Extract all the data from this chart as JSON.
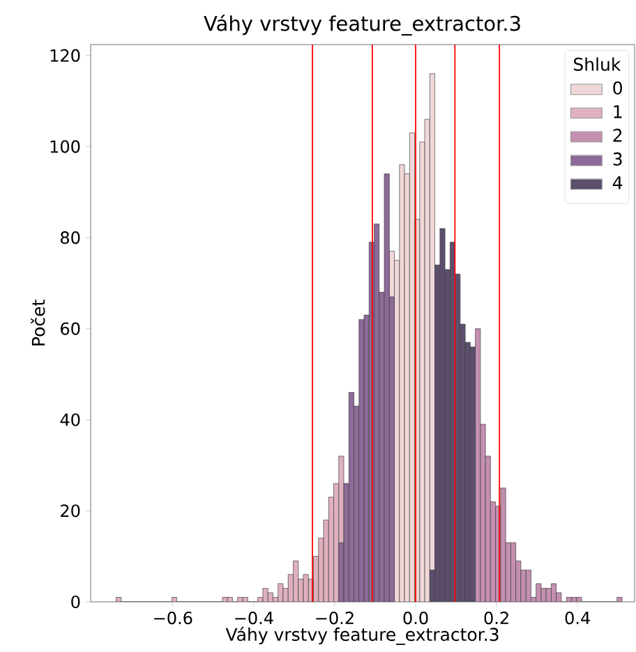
{
  "chart_data": {
    "type": "histogram",
    "title": "Váhy vrstvy feature_extractor.3",
    "xlabel": "Váhy vrstvy feature_extractor.3",
    "ylabel": "Počet",
    "legend_title": "Shluk",
    "legend": "top right",
    "xlim": [
      -0.803,
      0.541
    ],
    "ylim": [
      0,
      122.4
    ],
    "xticks": [
      {
        "value": -0.6,
        "label": "−0.6"
      },
      {
        "value": -0.4,
        "label": "−0.4"
      },
      {
        "value": -0.2,
        "label": "−0.2"
      },
      {
        "value": 0.0,
        "label": "0.0"
      },
      {
        "value": 0.2,
        "label": "0.2"
      },
      {
        "value": 0.4,
        "label": "0.4"
      }
    ],
    "yticks": [
      {
        "value": 0,
        "label": "0"
      },
      {
        "value": 20,
        "label": "20"
      },
      {
        "value": 40,
        "label": "40"
      },
      {
        "value": 60,
        "label": "60"
      },
      {
        "value": 80,
        "label": "80"
      },
      {
        "value": 100,
        "label": "100"
      },
      {
        "value": 120,
        "label": "120"
      }
    ],
    "ref_lines": [
      {
        "axis": "x",
        "value": -0.255,
        "color": "#ff0000"
      },
      {
        "axis": "x",
        "value": -0.107,
        "color": "#ff0000"
      },
      {
        "axis": "x",
        "value": 0.0,
        "color": "#ff0000"
      },
      {
        "axis": "x",
        "value": 0.097,
        "color": "#ff0000"
      },
      {
        "axis": "x",
        "value": 0.207,
        "color": "#ff0000"
      }
    ],
    "bins": [
      -0.74,
      -0.7275,
      -0.715,
      -0.7025,
      -0.69,
      -0.6775,
      -0.665,
      -0.6525,
      -0.64,
      -0.6275,
      -0.615,
      -0.6025,
      -0.59,
      -0.5775,
      -0.565,
      -0.5525,
      -0.54,
      -0.5275,
      -0.515,
      -0.5025,
      -0.49,
      -0.4775,
      -0.465,
      -0.4525,
      -0.44,
      -0.4275,
      -0.415,
      -0.4025,
      -0.39,
      -0.3775,
      -0.365,
      -0.3525,
      -0.34,
      -0.3275,
      -0.315,
      -0.3025,
      -0.29,
      -0.2775,
      -0.265,
      -0.2525,
      -0.24,
      -0.2275,
      -0.215,
      -0.2025,
      -0.19,
      -0.1775,
      -0.165,
      -0.1525,
      -0.14,
      -0.1275,
      -0.115,
      -0.1025,
      -0.09,
      -0.0775,
      -0.065,
      -0.0525,
      -0.04,
      -0.0275,
      -0.015,
      -0.0025,
      0.01,
      0.0225,
      0.035,
      0.0475,
      0.06,
      0.0725,
      0.085,
      0.0975,
      0.11,
      0.1225,
      0.135,
      0.1475,
      0.16,
      0.1725,
      0.185,
      0.1975,
      0.21,
      0.2225,
      0.235,
      0.2475,
      0.26,
      0.2725,
      0.285,
      0.2975,
      0.31,
      0.3225,
      0.335,
      0.3475,
      0.36,
      0.3725,
      0.385,
      0.3975,
      0.41,
      0.4225,
      0.435,
      0.4475,
      0.46,
      0.4725,
      0.485,
      0.4975,
      0.51
    ],
    "series": [
      {
        "name": "0",
        "color": "#f0d8d8",
        "values": [
          null,
          null,
          null,
          null,
          null,
          null,
          null,
          null,
          null,
          null,
          null,
          null,
          null,
          null,
          null,
          null,
          null,
          null,
          null,
          null,
          null,
          null,
          null,
          null,
          null,
          null,
          null,
          null,
          null,
          null,
          null,
          null,
          null,
          null,
          null,
          null,
          null,
          null,
          null,
          null,
          null,
          null,
          null,
          null,
          null,
          null,
          null,
          null,
          null,
          null,
          null,
          null,
          null,
          null,
          77,
          75,
          96,
          94,
          103,
          84,
          101,
          106,
          116,
          null,
          null,
          null,
          null,
          null,
          null,
          null,
          null,
          null,
          null,
          null,
          null,
          null,
          null,
          null,
          null,
          null,
          null,
          null,
          null,
          null,
          null,
          null,
          null,
          null,
          null,
          null,
          null,
          null,
          null,
          null,
          null,
          null,
          null,
          null,
          null,
          null
        ]
      },
      {
        "name": "1",
        "color": "#dfb0bd",
        "values": [
          1,
          0,
          0,
          0,
          0,
          0,
          0,
          0,
          0,
          0,
          0,
          1,
          0,
          0,
          0,
          0,
          0,
          0,
          0,
          0,
          0,
          1,
          1,
          0,
          1,
          1,
          0,
          0,
          1,
          3,
          2,
          1,
          4,
          3,
          6,
          9,
          5,
          6,
          5,
          10,
          14,
          18,
          23,
          26,
          32,
          null,
          null,
          null,
          null,
          null,
          null,
          null,
          null,
          null,
          null,
          null,
          null,
          null,
          null,
          null,
          null,
          null,
          null,
          null,
          null,
          null,
          null,
          null,
          null,
          null,
          null,
          null,
          null,
          null,
          null,
          null,
          null,
          null,
          null,
          null,
          null,
          null,
          null,
          null,
          null,
          null,
          null,
          null,
          null,
          null,
          null,
          null,
          null,
          null,
          null,
          null,
          null,
          null,
          null,
          null
        ]
      },
      {
        "name": "2",
        "color": "#c48fb0",
        "values": [
          null,
          null,
          null,
          null,
          null,
          null,
          null,
          null,
          null,
          null,
          null,
          null,
          null,
          null,
          null,
          null,
          null,
          null,
          null,
          null,
          null,
          null,
          null,
          null,
          null,
          null,
          null,
          null,
          null,
          null,
          null,
          null,
          null,
          null,
          null,
          null,
          null,
          null,
          null,
          null,
          null,
          null,
          null,
          null,
          null,
          null,
          null,
          null,
          null,
          null,
          null,
          null,
          null,
          null,
          null,
          null,
          null,
          null,
          null,
          null,
          null,
          null,
          null,
          null,
          null,
          null,
          null,
          null,
          null,
          null,
          null,
          60,
          39,
          32,
          22,
          21,
          25,
          13,
          13,
          9,
          7,
          7,
          1,
          4,
          3,
          3,
          4,
          2,
          0,
          1,
          1,
          1,
          0,
          0,
          0,
          0,
          0,
          0,
          0,
          1
        ]
      },
      {
        "name": "3",
        "color": "#8d6a98",
        "values": [
          null,
          null,
          null,
          null,
          null,
          null,
          null,
          null,
          null,
          null,
          null,
          null,
          null,
          null,
          null,
          null,
          null,
          null,
          null,
          null,
          null,
          null,
          null,
          null,
          null,
          null,
          null,
          null,
          null,
          null,
          null,
          null,
          null,
          null,
          null,
          null,
          null,
          null,
          null,
          null,
          null,
          null,
          null,
          null,
          13,
          26,
          46,
          43,
          62,
          63,
          79,
          83,
          68,
          94,
          67,
          null,
          null,
          null,
          null,
          null,
          null,
          null,
          null,
          null,
          null,
          null,
          null,
          null,
          null,
          null,
          null,
          null,
          null,
          null,
          null,
          null,
          null,
          null,
          null,
          null,
          null,
          null,
          null,
          null,
          null,
          null,
          null,
          null,
          null,
          null,
          null,
          null,
          null,
          null,
          null,
          null,
          null,
          null,
          null,
          null
        ]
      },
      {
        "name": "4",
        "color": "#5c4e6d",
        "values": [
          null,
          null,
          null,
          null,
          null,
          null,
          null,
          null,
          null,
          null,
          null,
          null,
          null,
          null,
          null,
          null,
          null,
          null,
          null,
          null,
          null,
          null,
          null,
          null,
          null,
          null,
          null,
          null,
          null,
          null,
          null,
          null,
          null,
          null,
          null,
          null,
          null,
          null,
          null,
          null,
          null,
          null,
          null,
          null,
          null,
          null,
          null,
          null,
          null,
          null,
          null,
          null,
          null,
          null,
          null,
          null,
          null,
          null,
          null,
          null,
          null,
          null,
          7,
          74,
          82,
          73,
          79,
          72,
          61,
          57,
          56,
          null,
          null,
          null,
          null,
          null,
          null,
          null,
          null,
          null,
          null,
          null,
          null,
          null,
          null,
          null,
          null,
          null,
          null,
          null,
          null,
          null,
          null,
          null,
          null,
          null,
          null,
          null,
          null,
          null
        ]
      }
    ]
  }
}
